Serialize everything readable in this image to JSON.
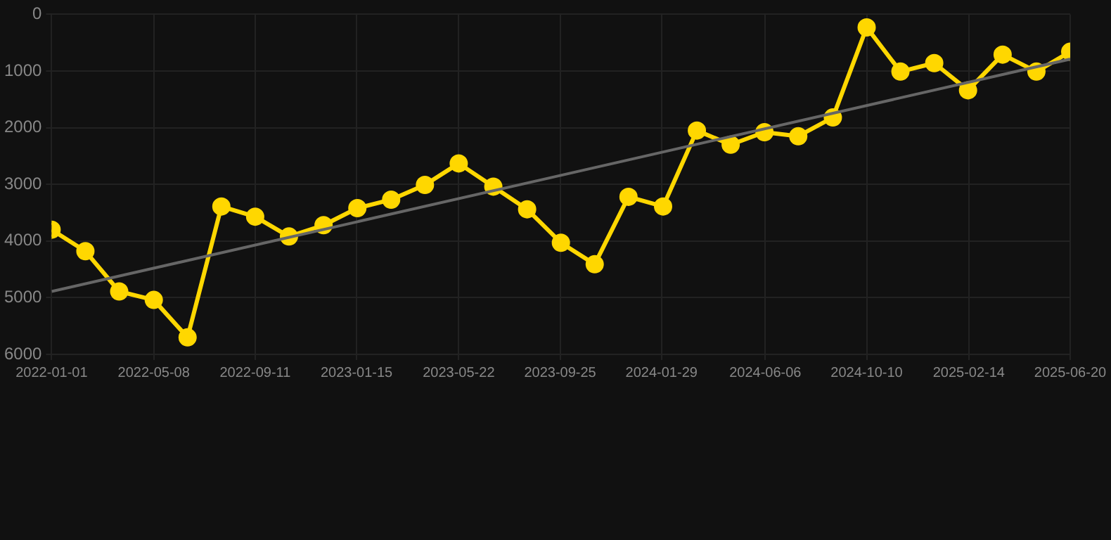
{
  "chart_data": {
    "type": "line",
    "x": [
      "2022-01-01",
      "2022-02-12",
      "2022-03-26",
      "2022-05-08",
      "2022-06-19",
      "2022-07-31",
      "2022-09-11",
      "2022-10-23",
      "2022-12-05",
      "2023-01-16",
      "2023-02-27",
      "2023-04-10",
      "2023-05-22",
      "2023-07-04",
      "2023-08-15",
      "2023-09-26",
      "2023-11-07",
      "2023-12-19",
      "2024-01-31",
      "2024-03-13",
      "2024-04-24",
      "2024-06-05",
      "2024-07-17",
      "2024-08-29",
      "2024-10-10",
      "2024-11-21",
      "2025-01-02",
      "2025-02-13",
      "2025-03-28",
      "2025-05-09",
      "2025-06-20"
    ],
    "series": [
      {
        "color": "#ffd700",
        "marker": "circle",
        "values": [
          3800,
          4180,
          4890,
          5040,
          5700,
          3390,
          3570,
          3920,
          3720,
          3420,
          3270,
          3010,
          2630,
          3040,
          3440,
          4030,
          4410,
          3220,
          3390,
          2050,
          2300,
          2080,
          2150,
          1820,
          230,
          1010,
          860,
          1340,
          710,
          1010,
          660
        ]
      },
      {
        "type": "line",
        "color": "#666666",
        "marker": "none",
        "x": [
          "2022-01-01",
          "2025-06-20"
        ],
        "values": [
          4890,
          790
        ]
      }
    ],
    "xlim": [
      "2022-01-01",
      "2025-06-20"
    ],
    "xticks": [
      "2022-01-01",
      "2022-05-08",
      "2022-09-11",
      "2023-01-15",
      "2023-05-22",
      "2023-09-25",
      "2024-01-29",
      "2024-06-06",
      "2024-10-10",
      "2025-02-14",
      "2025-06-20"
    ],
    "ylim": [
      6000,
      0
    ],
    "yticks": [
      0,
      1000,
      2000,
      3000,
      4000,
      5000,
      6000
    ],
    "grid": true
  }
}
